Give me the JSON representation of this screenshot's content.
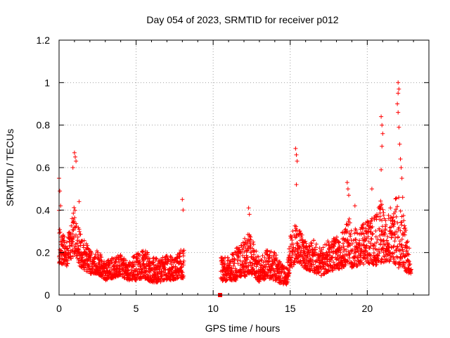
{
  "chart_data": {
    "type": "scatter",
    "title": "Day 054 of 2023, SRMTID for receiver p012",
    "xlabel": "GPS time / hours",
    "ylabel": "SRMTID / TECUs",
    "xlim": [
      0,
      24
    ],
    "ylim": [
      0,
      1.2
    ],
    "xticks": [
      "0",
      "5",
      "10",
      "15",
      "20"
    ],
    "xtick_values": [
      0,
      5,
      10,
      15,
      20
    ],
    "yticks": [
      "0",
      "0.2",
      "0.4",
      "0.6",
      "0.8",
      "1",
      "1.2"
    ],
    "ytick_values": [
      0,
      0.2,
      0.4,
      0.6,
      0.8,
      1.0,
      1.2
    ],
    "grid": true,
    "marker": "+",
    "color": "#ff0000",
    "gap_hours": [
      8.1,
      10.4
    ],
    "series": [
      {
        "name": "SRMTID",
        "envelope": {
          "x": [
            0.0,
            0.1,
            0.3,
            0.5,
            0.7,
            0.9,
            1.05,
            1.3,
            1.6,
            2.0,
            2.5,
            3.0,
            3.5,
            4.0,
            4.5,
            5.0,
            5.5,
            6.0,
            6.5,
            7.0,
            7.5,
            8.0,
            10.5,
            11.0,
            11.5,
            12.0,
            12.3,
            12.6,
            13.0,
            13.5,
            14.0,
            14.5,
            14.8,
            15.0,
            15.3,
            15.6,
            16.0,
            16.5,
            17.0,
            17.5,
            18.0,
            18.5,
            18.8,
            19.0,
            19.5,
            20.0,
            20.5,
            20.9,
            21.2,
            21.6,
            22.0,
            22.3,
            22.6,
            22.85
          ],
          "low": [
            0.12,
            0.14,
            0.15,
            0.13,
            0.16,
            0.18,
            0.2,
            0.14,
            0.12,
            0.1,
            0.1,
            0.07,
            0.08,
            0.09,
            0.07,
            0.07,
            0.08,
            0.06,
            0.06,
            0.07,
            0.07,
            0.08,
            0.06,
            0.07,
            0.07,
            0.08,
            0.1,
            0.09,
            0.06,
            0.08,
            0.07,
            0.05,
            0.05,
            0.12,
            0.15,
            0.15,
            0.12,
            0.11,
            0.09,
            0.11,
            0.12,
            0.13,
            0.15,
            0.13,
            0.14,
            0.15,
            0.14,
            0.15,
            0.15,
            0.16,
            0.13,
            0.12,
            0.1,
            0.1
          ],
          "high": [
            0.4,
            0.3,
            0.28,
            0.25,
            0.32,
            0.38,
            0.45,
            0.32,
            0.26,
            0.22,
            0.21,
            0.16,
            0.18,
            0.19,
            0.15,
            0.2,
            0.22,
            0.18,
            0.17,
            0.19,
            0.18,
            0.22,
            0.18,
            0.18,
            0.22,
            0.26,
            0.3,
            0.25,
            0.17,
            0.22,
            0.2,
            0.14,
            0.13,
            0.28,
            0.34,
            0.32,
            0.25,
            0.26,
            0.22,
            0.26,
            0.28,
            0.3,
            0.38,
            0.3,
            0.33,
            0.35,
            0.38,
            0.45,
            0.36,
            0.4,
            0.5,
            0.42,
            0.26,
            0.2
          ]
        },
        "spikes": [
          {
            "x": 0.0,
            "y": 0.55
          },
          {
            "x": 0.05,
            "y": 0.49
          },
          {
            "x": 0.1,
            "y": 0.42
          },
          {
            "x": 0.9,
            "y": 0.6
          },
          {
            "x": 1.0,
            "y": 0.67
          },
          {
            "x": 1.05,
            "y": 0.65
          },
          {
            "x": 1.1,
            "y": 0.63
          },
          {
            "x": 1.3,
            "y": 0.44
          },
          {
            "x": 8.0,
            "y": 0.45
          },
          {
            "x": 8.05,
            "y": 0.4
          },
          {
            "x": 10.45,
            "y": 0.0
          },
          {
            "x": 10.5,
            "y": 0.0
          },
          {
            "x": 12.3,
            "y": 0.41
          },
          {
            "x": 12.35,
            "y": 0.38
          },
          {
            "x": 15.35,
            "y": 0.69
          },
          {
            "x": 15.4,
            "y": 0.66
          },
          {
            "x": 15.45,
            "y": 0.63
          },
          {
            "x": 15.4,
            "y": 0.52
          },
          {
            "x": 18.7,
            "y": 0.53
          },
          {
            "x": 18.75,
            "y": 0.5
          },
          {
            "x": 18.8,
            "y": 0.47
          },
          {
            "x": 19.2,
            "y": 0.42
          },
          {
            "x": 20.3,
            "y": 0.5
          },
          {
            "x": 20.9,
            "y": 0.84
          },
          {
            "x": 20.95,
            "y": 0.8
          },
          {
            "x": 21.0,
            "y": 0.76
          },
          {
            "x": 20.95,
            "y": 0.7
          },
          {
            "x": 20.9,
            "y": 0.59
          },
          {
            "x": 21.5,
            "y": 0.41
          },
          {
            "x": 22.0,
            "y": 1.0
          },
          {
            "x": 22.05,
            "y": 0.97
          },
          {
            "x": 22.0,
            "y": 0.95
          },
          {
            "x": 21.95,
            "y": 0.9
          },
          {
            "x": 22.0,
            "y": 0.86
          },
          {
            "x": 22.05,
            "y": 0.79
          },
          {
            "x": 22.1,
            "y": 0.71
          },
          {
            "x": 22.15,
            "y": 0.64
          },
          {
            "x": 22.2,
            "y": 0.6
          },
          {
            "x": 22.25,
            "y": 0.55
          },
          {
            "x": 22.3,
            "y": 0.46
          }
        ]
      }
    ]
  }
}
